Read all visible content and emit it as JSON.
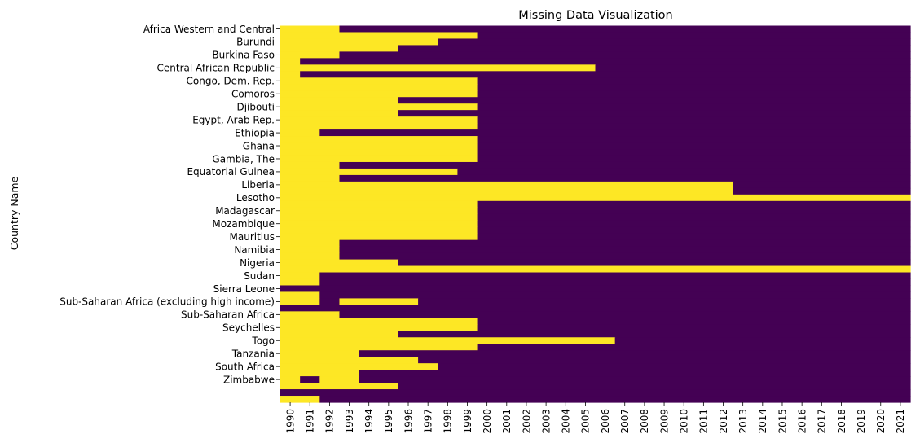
{
  "chart_data": {
    "type": "heatmap",
    "title": "Missing Data Visualization",
    "ylabel": "Country Name",
    "xlabel": "",
    "colors": {
      "missing": "#fde725",
      "present": "#440154"
    },
    "grid": false,
    "legend": "none",
    "x": [
      "1990",
      "1991",
      "1992",
      "1993",
      "1994",
      "1995",
      "1996",
      "1997",
      "1998",
      "1999",
      "2000",
      "2001",
      "2002",
      "2003",
      "2004",
      "2005",
      "2006",
      "2007",
      "2008",
      "2009",
      "2010",
      "2011",
      "2012",
      "2013",
      "2014",
      "2015",
      "2016",
      "2017",
      "2018",
      "2019",
      "2020",
      "2021"
    ],
    "y_labels": [
      "Africa Western and Central",
      "Burundi",
      "Burkina Faso",
      "Central African Republic",
      "Congo, Dem. Rep.",
      "Comoros",
      "Djibouti",
      "Egypt, Arab Rep.",
      "Ethiopia",
      "Ghana",
      "Gambia, The",
      "Equatorial Guinea",
      "Liberia",
      "Lesotho",
      "Madagascar",
      "Mozambique",
      "Mauritius",
      "Namibia",
      "Nigeria",
      "Sudan",
      "Sierra Leone",
      "Sub-Saharan Africa (excluding high income)",
      "Sub-Saharan Africa",
      "Seychelles",
      "Togo",
      "Tanzania",
      "South Africa",
      "Zimbabwe"
    ],
    "rows": [
      {
        "missing_years": [
          "1990",
          "1991",
          "1992"
        ]
      },
      {
        "missing_years": [
          "1990",
          "1991",
          "1992",
          "1993",
          "1994",
          "1995",
          "1996",
          "1997",
          "1998",
          "1999"
        ]
      },
      {
        "missing_years": [
          "1990",
          "1991",
          "1992",
          "1993",
          "1994",
          "1995",
          "1996",
          "1997"
        ]
      },
      {
        "missing_years": [
          "1990",
          "1991",
          "1992",
          "1993",
          "1994",
          "1995"
        ]
      },
      {
        "missing_years": [
          "1990",
          "1991",
          "1992"
        ]
      },
      {
        "missing_years": [
          "1990"
        ]
      },
      {
        "missing_years": [
          "1990",
          "1991",
          "1992",
          "1993",
          "1994",
          "1995",
          "1996",
          "1997",
          "1998",
          "1999",
          "2000",
          "2001",
          "2002",
          "2003",
          "2004",
          "2005"
        ]
      },
      {
        "missing_years": [
          "1990"
        ]
      },
      {
        "missing_years": [
          "1990",
          "1991",
          "1992",
          "1993",
          "1994",
          "1995",
          "1996",
          "1997",
          "1998",
          "1999"
        ]
      },
      {
        "missing_years": [
          "1990",
          "1991",
          "1992",
          "1993",
          "1994",
          "1995",
          "1996",
          "1997",
          "1998",
          "1999"
        ]
      },
      {
        "missing_years": [
          "1990",
          "1991",
          "1992",
          "1993",
          "1994",
          "1995",
          "1996",
          "1997",
          "1998",
          "1999"
        ]
      },
      {
        "missing_years": [
          "1990",
          "1991",
          "1992",
          "1993",
          "1994",
          "1995"
        ]
      },
      {
        "missing_years": [
          "1990",
          "1991",
          "1992",
          "1993",
          "1994",
          "1995",
          "1996",
          "1997",
          "1998",
          "1999"
        ]
      },
      {
        "missing_years": [
          "1990",
          "1991",
          "1992",
          "1993",
          "1994",
          "1995"
        ]
      },
      {
        "missing_years": [
          "1990",
          "1991",
          "1992",
          "1993",
          "1994",
          "1995",
          "1996",
          "1997",
          "1998",
          "1999"
        ]
      },
      {
        "missing_years": [
          "1990",
          "1991",
          "1992",
          "1993",
          "1994",
          "1995",
          "1996",
          "1997",
          "1998",
          "1999"
        ]
      },
      {
        "missing_years": [
          "1990",
          "1991"
        ]
      },
      {
        "missing_years": [
          "1990",
          "1991",
          "1992",
          "1993",
          "1994",
          "1995",
          "1996",
          "1997",
          "1998",
          "1999"
        ]
      },
      {
        "missing_years": [
          "1990",
          "1991",
          "1992",
          "1993",
          "1994",
          "1995",
          "1996",
          "1997",
          "1998",
          "1999"
        ]
      },
      {
        "missing_years": [
          "1990",
          "1991",
          "1992",
          "1993",
          "1994",
          "1995",
          "1996",
          "1997",
          "1998",
          "1999"
        ]
      },
      {
        "missing_years": [
          "1990",
          "1991",
          "1992",
          "1993",
          "1994",
          "1995",
          "1996",
          "1997",
          "1998",
          "1999"
        ]
      },
      {
        "missing_years": [
          "1990",
          "1991",
          "1992"
        ]
      },
      {
        "missing_years": [
          "1990",
          "1991",
          "1992",
          "1993",
          "1994",
          "1995",
          "1996",
          "1997",
          "1998"
        ]
      },
      {
        "missing_years": [
          "1990",
          "1991",
          "1992"
        ]
      },
      {
        "missing_years": [
          "1990",
          "1991",
          "1992",
          "1993",
          "1994",
          "1995",
          "1996",
          "1997",
          "1998",
          "1999",
          "2000",
          "2001",
          "2002",
          "2003",
          "2004",
          "2005",
          "2006",
          "2007",
          "2008",
          "2009",
          "2010",
          "2011",
          "2012"
        ]
      },
      {
        "missing_years": [
          "1990",
          "1991",
          "1992",
          "1993",
          "1994",
          "1995",
          "1996",
          "1997",
          "1998",
          "1999",
          "2000",
          "2001",
          "2002",
          "2003",
          "2004",
          "2005",
          "2006",
          "2007",
          "2008",
          "2009",
          "2010",
          "2011",
          "2012"
        ]
      },
      {
        "missing_years": [
          "1990",
          "1991",
          "1992",
          "1993",
          "1994",
          "1995",
          "1996",
          "1997",
          "1998",
          "1999",
          "2000",
          "2001",
          "2002",
          "2003",
          "2004",
          "2005",
          "2006",
          "2007",
          "2008",
          "2009",
          "2010",
          "2011",
          "2012",
          "2013",
          "2014",
          "2015",
          "2016",
          "2017",
          "2018",
          "2019",
          "2020",
          "2021"
        ]
      },
      {
        "missing_years": [
          "1990",
          "1991",
          "1992",
          "1993",
          "1994",
          "1995",
          "1996",
          "1997",
          "1998",
          "1999"
        ]
      },
      {
        "missing_years": [
          "1990",
          "1991",
          "1992",
          "1993",
          "1994",
          "1995",
          "1996",
          "1997",
          "1998",
          "1999"
        ]
      },
      {
        "missing_years": [
          "1990",
          "1991",
          "1992",
          "1993",
          "1994",
          "1995",
          "1996",
          "1997",
          "1998",
          "1999"
        ]
      },
      {
        "missing_years": [
          "1990",
          "1991",
          "1992",
          "1993",
          "1994",
          "1995",
          "1996",
          "1997",
          "1998",
          "1999"
        ]
      },
      {
        "missing_years": [
          "1990",
          "1991",
          "1992",
          "1993",
          "1994",
          "1995",
          "1996",
          "1997",
          "1998",
          "1999"
        ]
      },
      {
        "missing_years": [
          "1990",
          "1991",
          "1992",
          "1993",
          "1994",
          "1995",
          "1996",
          "1997",
          "1998",
          "1999"
        ]
      },
      {
        "missing_years": [
          "1990",
          "1991",
          "1992"
        ]
      },
      {
        "missing_years": [
          "1990",
          "1991",
          "1992"
        ]
      },
      {
        "missing_years": [
          "1990",
          "1991",
          "1992"
        ]
      },
      {
        "missing_years": [
          "1990",
          "1991",
          "1992",
          "1993",
          "1994",
          "1995"
        ]
      },
      {
        "missing_years": [
          "1990",
          "1991",
          "1992",
          "1993",
          "1994",
          "1995",
          "1996",
          "1997",
          "1998",
          "1999",
          "2000",
          "2001",
          "2002",
          "2003",
          "2004",
          "2005",
          "2006",
          "2007",
          "2008",
          "2009",
          "2010",
          "2011",
          "2012",
          "2013",
          "2014",
          "2015",
          "2016",
          "2017",
          "2018",
          "2019",
          "2020",
          "2021"
        ]
      },
      {
        "missing_years": [
          "1990",
          "1991"
        ]
      },
      {
        "missing_years": [
          "1990",
          "1991"
        ]
      },
      {
        "missing_years": []
      },
      {
        "missing_years": [
          "1990",
          "1991"
        ]
      },
      {
        "missing_years": [
          "1990",
          "1991",
          "1993",
          "1994",
          "1995",
          "1996"
        ]
      },
      {
        "missing_years": []
      },
      {
        "missing_years": [
          "1990",
          "1991",
          "1992"
        ]
      },
      {
        "missing_years": [
          "1990",
          "1991",
          "1992",
          "1993",
          "1994",
          "1995",
          "1996",
          "1997",
          "1998",
          "1999"
        ]
      },
      {
        "missing_years": [
          "1990",
          "1991",
          "1992",
          "1993",
          "1994",
          "1995",
          "1996",
          "1997",
          "1998",
          "1999"
        ]
      },
      {
        "missing_years": [
          "1990",
          "1991",
          "1992",
          "1993",
          "1994",
          "1995"
        ]
      },
      {
        "missing_years": [
          "1990",
          "1991",
          "1992",
          "1993",
          "1994",
          "1995",
          "1996",
          "1997",
          "1998",
          "1999",
          "2000",
          "2001",
          "2002",
          "2003",
          "2004",
          "2005",
          "2006"
        ]
      },
      {
        "missing_years": [
          "1990",
          "1991",
          "1992",
          "1993",
          "1994",
          "1995",
          "1996",
          "1997",
          "1998",
          "1999"
        ]
      },
      {
        "missing_years": [
          "1990",
          "1991",
          "1992",
          "1993"
        ]
      },
      {
        "missing_years": [
          "1990",
          "1991",
          "1992",
          "1993",
          "1994",
          "1995",
          "1996"
        ]
      },
      {
        "missing_years": [
          "1990",
          "1991",
          "1992",
          "1993",
          "1994",
          "1995",
          "1996",
          "1997"
        ]
      },
      {
        "missing_years": [
          "1990",
          "1991",
          "1992",
          "1993"
        ]
      },
      {
        "missing_years": [
          "1990",
          "1992",
          "1993"
        ]
      },
      {
        "missing_years": [
          "1990",
          "1991",
          "1992",
          "1993",
          "1994",
          "1995"
        ]
      },
      {
        "missing_years": []
      },
      {
        "missing_years": [
          "1990",
          "1991"
        ]
      }
    ]
  }
}
